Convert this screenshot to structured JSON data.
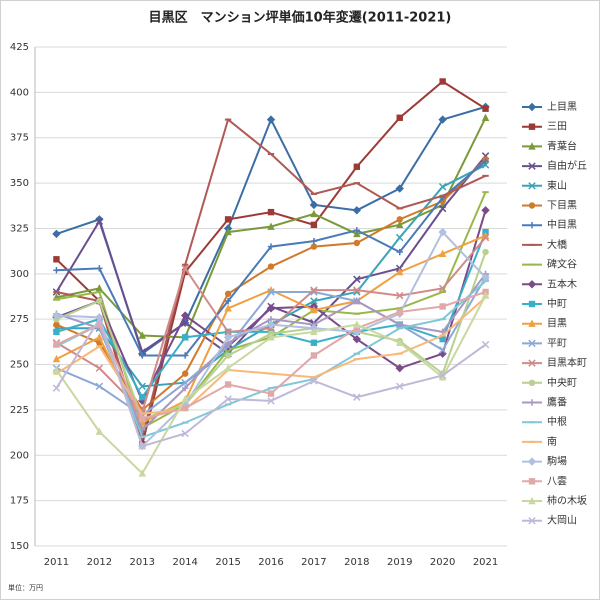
{
  "chart_data": {
    "type": "line",
    "title": "目黒区　マンション坪単価10年変遷(2011-2021)",
    "note": "単位：万円",
    "categories": [
      "2011",
      "2012",
      "2013",
      "2014",
      "2015",
      "2016",
      "2017",
      "2018",
      "2019",
      "2020",
      "2021"
    ],
    "ylim": [
      150,
      425
    ],
    "yticks": [
      150,
      175,
      200,
      225,
      250,
      275,
      300,
      325,
      350,
      375,
      400,
      425
    ],
    "grid": true,
    "series": [
      {
        "name": "上目黒",
        "color": "#3c6ea6",
        "marker": "diamond",
        "values": [
          322,
          330,
          256,
          273,
          325,
          385,
          338,
          335,
          347,
          385,
          392
        ]
      },
      {
        "name": "三田",
        "color": "#9c3a36",
        "marker": "square",
        "values": [
          308,
          285,
          206,
          301,
          330,
          334,
          327,
          359,
          386,
          406,
          391
        ]
      },
      {
        "name": "青葉台",
        "color": "#7a9a3a",
        "marker": "triangle",
        "values": [
          287,
          292,
          266,
          265,
          323,
          326,
          333,
          322,
          327,
          338,
          386
        ]
      },
      {
        "name": "自由が丘",
        "color": "#6a4f8f",
        "marker": "x",
        "values": [
          290,
          329,
          257,
          273,
          256,
          282,
          273,
          297,
          303,
          336,
          365
        ]
      },
      {
        "name": "東山",
        "color": "#3ba3b8",
        "marker": "x",
        "values": [
          270,
          270,
          238,
          240,
          258,
          272,
          285,
          290,
          320,
          348,
          360
        ]
      },
      {
        "name": "下目黒",
        "color": "#d07a2a",
        "marker": "circle",
        "values": [
          272,
          262,
          225,
          245,
          289,
          304,
          315,
          317,
          330,
          340,
          363
        ]
      },
      {
        "name": "中目黒",
        "color": "#4a7ab8",
        "marker": "plus",
        "values": [
          302,
          303,
          255,
          255,
          285,
          315,
          318,
          324,
          312,
          342,
          362
        ]
      },
      {
        "name": "大橋",
        "color": "#b05a55",
        "marker": "dash",
        "values": [
          290,
          285,
          210,
          305,
          385,
          366,
          344,
          350,
          336,
          343,
          354
        ]
      },
      {
        "name": "碑文谷",
        "color": "#9ab84a",
        "marker": "dash",
        "values": [
          286,
          290,
          215,
          228,
          258,
          265,
          280,
          278,
          281,
          290,
          345
        ]
      },
      {
        "name": "五本木",
        "color": "#7a4a8a",
        "marker": "diamond",
        "values": [
          276,
          285,
          230,
          277,
          260,
          281,
          282,
          264,
          248,
          256,
          335
        ]
      },
      {
        "name": "中町",
        "color": "#3ab0c8",
        "marker": "square",
        "values": [
          268,
          275,
          232,
          265,
          268,
          268,
          262,
          268,
          272,
          264,
          323
        ]
      },
      {
        "name": "目黒",
        "color": "#f0a040",
        "marker": "triangle",
        "values": [
          253,
          265,
          218,
          230,
          281,
          291,
          280,
          285,
          301,
          311,
          321
        ]
      },
      {
        "name": "平町",
        "color": "#8aa8d8",
        "marker": "x",
        "values": [
          248,
          238,
          222,
          240,
          260,
          290,
          290,
          285,
          272,
          258,
          298
        ]
      },
      {
        "name": "目黒本町",
        "color": "#d08a88",
        "marker": "x",
        "values": [
          262,
          248,
          224,
          303,
          268,
          270,
          291,
          291,
          288,
          292,
          320
        ]
      },
      {
        "name": "中央町",
        "color": "#b8d090",
        "marker": "circle",
        "values": [
          275,
          285,
          220,
          228,
          255,
          267,
          270,
          268,
          263,
          245,
          312
        ]
      },
      {
        "name": "鷹番",
        "color": "#a898c0",
        "marker": "plus",
        "values": [
          278,
          270,
          214,
          237,
          262,
          275,
          272,
          285,
          272,
          268,
          300
        ]
      },
      {
        "name": "中根",
        "color": "#80c8d8",
        "marker": "dash",
        "values": [
          260,
          272,
          210,
          218,
          228,
          237,
          242,
          256,
          270,
          275,
          296
        ]
      },
      {
        "name": "南",
        "color": "#f8b878",
        "marker": "dash",
        "values": [
          245,
          260,
          223,
          225,
          247,
          245,
          243,
          253,
          256,
          266,
          287
        ]
      },
      {
        "name": "駒場",
        "color": "#b0c0e0",
        "marker": "diamond",
        "values": [
          277,
          276,
          205,
          228,
          265,
          272,
          270,
          268,
          278,
          323,
          298
        ]
      },
      {
        "name": "八雲",
        "color": "#e0a8a8",
        "marker": "square",
        "values": [
          261,
          272,
          220,
          226,
          239,
          234,
          255,
          270,
          279,
          282,
          290
        ]
      },
      {
        "name": "柿の木坂",
        "color": "#c8d8a0",
        "marker": "triangle",
        "values": [
          247,
          213,
          190,
          231,
          248,
          265,
          268,
          272,
          262,
          243,
          288
        ]
      },
      {
        "name": "大岡山",
        "color": "#c0b8d8",
        "marker": "x",
        "values": [
          237,
          275,
          205,
          212,
          231,
          230,
          241,
          232,
          238,
          244,
          261
        ]
      }
    ]
  }
}
